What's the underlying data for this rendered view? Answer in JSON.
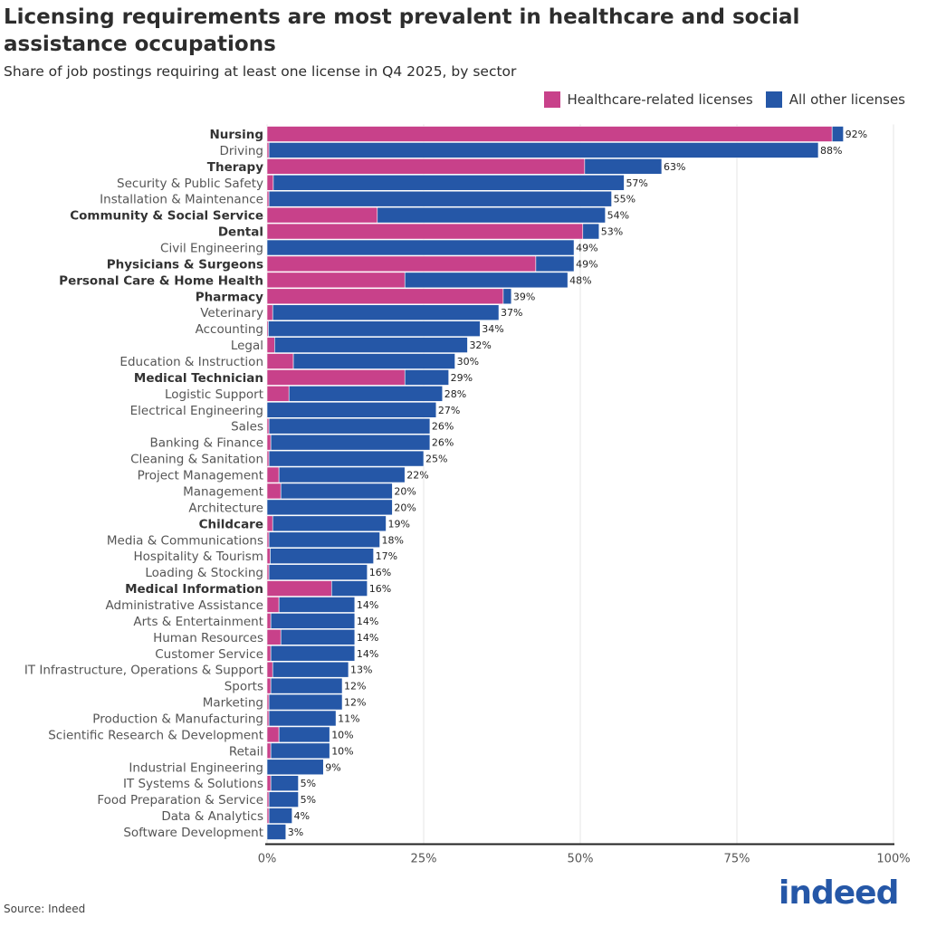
{
  "title": "Licensing requirements are most prevalent in healthcare and social assistance occupations",
  "subtitle": "Share of job postings requiring at least one license in Q4 2025, by sector",
  "source": "Source: Indeed",
  "logo_text": "indeed",
  "colors": {
    "healthcare": "#C8418A",
    "other": "#2557A7"
  },
  "chart_data": {
    "type": "bar",
    "orientation": "horizontal",
    "stacked": true,
    "title": "Licensing requirements are most prevalent in healthcare and social assistance occupations",
    "subtitle": "Share of job postings requiring at least one license in Q4 2025, by sector",
    "xlim": [
      0,
      100
    ],
    "x_ticks": [
      "0%",
      "25%",
      "50%",
      "75%",
      "100%"
    ],
    "grid": "vertical",
    "legend_placement": "top-right",
    "legend": [
      "Healthcare-related licenses",
      "All other licenses"
    ],
    "categories": [
      "Nursing",
      "Driving",
      "Therapy",
      "Security & Public Safety",
      "Installation & Maintenance",
      "Community & Social Service",
      "Dental",
      "Civil Engineering",
      "Physicians & Surgeons",
      "Personal Care & Home Health",
      "Pharmacy",
      "Veterinary",
      "Accounting",
      "Legal",
      "Education & Instruction",
      "Medical Technician",
      "Logistic Support",
      "Electrical Engineering",
      "Sales",
      "Banking & Finance",
      "Cleaning & Sanitation",
      "Project Management",
      "Management",
      "Architecture",
      "Childcare",
      "Media & Communications",
      "Hospitality & Tourism",
      "Loading & Stocking",
      "Medical Information",
      "Administrative Assistance",
      "Arts & Entertainment",
      "Human Resources",
      "Customer Service",
      "IT Infrastructure, Operations & Support",
      "Sports",
      "Marketing",
      "Production & Manufacturing",
      "Scientific Research & Development",
      "Retail",
      "Industrial Engineering",
      "IT Systems & Solutions",
      "Food Preparation & Service",
      "Data & Analytics",
      "Software Development"
    ],
    "bold_categories": [
      "Nursing",
      "Therapy",
      "Community & Social Service",
      "Dental",
      "Physicians & Surgeons",
      "Personal Care & Home Health",
      "Pharmacy",
      "Medical Technician",
      "Childcare",
      "Medical Information"
    ],
    "totals": [
      92,
      88,
      63,
      57,
      55,
      54,
      53,
      49,
      49,
      48,
      39,
      37,
      34,
      32,
      30,
      29,
      28,
      27,
      26,
      26,
      25,
      22,
      20,
      20,
      19,
      18,
      17,
      16,
      16,
      14,
      14,
      14,
      14,
      13,
      12,
      12,
      11,
      10,
      10,
      9,
      5,
      5,
      4,
      3
    ],
    "series": [
      {
        "name": "Healthcare-related licenses",
        "values": [
          90.2,
          0.3,
          50.7,
          1.0,
          0.3,
          17.6,
          50.4,
          0,
          42.9,
          22.0,
          37.7,
          0.9,
          0.2,
          1.2,
          4.2,
          22.0,
          3.5,
          0,
          0.3,
          0.6,
          0.3,
          1.9,
          2.2,
          0,
          0.9,
          0.3,
          0.5,
          0.3,
          10.3,
          1.9,
          0.6,
          2.2,
          0.6,
          0.9,
          0.6,
          0.3,
          0.3,
          1.9,
          0.6,
          0,
          0.6,
          0.3,
          0.3,
          0
        ]
      },
      {
        "name": "All other licenses",
        "values": [
          1.8,
          87.7,
          12.3,
          56.0,
          54.7,
          36.4,
          2.6,
          49,
          6.1,
          26.0,
          1.3,
          36.1,
          33.8,
          30.8,
          25.8,
          7.0,
          24.5,
          27,
          25.7,
          25.4,
          24.7,
          20.1,
          17.8,
          20,
          18.1,
          17.7,
          16.5,
          15.7,
          5.7,
          12.1,
          13.4,
          11.8,
          13.4,
          12.1,
          11.4,
          11.7,
          10.7,
          8.1,
          9.4,
          9,
          4.4,
          4.7,
          3.7,
          3
        ]
      }
    ]
  }
}
